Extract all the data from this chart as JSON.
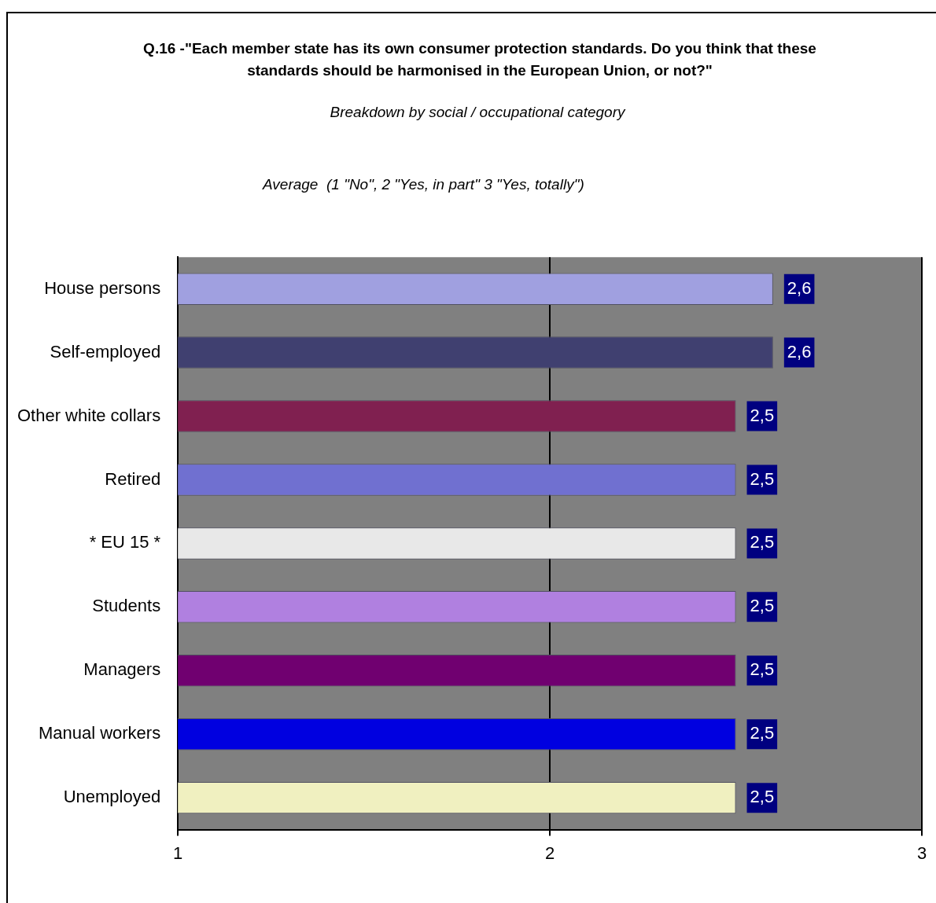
{
  "chart_data": {
    "type": "bar",
    "orientation": "horizontal",
    "title": "Q.16 -\"Each  member state has its own consumer protection standards. Do you think that these standards should be harmonised in the European Union, or not?\"",
    "subtitle": "Breakdown by social / occupational category",
    "annotations": [
      "Average  (1 \"No\", 2 \"Yes, in part\" 3 \"Yes, totally\")"
    ],
    "categories": [
      "House persons",
      "Self-employed",
      "Other white collars",
      "Retired",
      "* EU 15 *",
      "Students",
      "Managers",
      "Manual workers",
      "Unemployed"
    ],
    "values": [
      2.6,
      2.6,
      2.5,
      2.5,
      2.5,
      2.5,
      2.5,
      2.5,
      2.5
    ],
    "value_labels": [
      "2,6",
      "2,6",
      "2,5",
      "2,5",
      "2,5",
      "2,5",
      "2,5",
      "2,5",
      "2,5"
    ],
    "colors": [
      "#a0a0e0",
      "#404070",
      "#802050",
      "#7070d0",
      "#e8e8e8",
      "#b080e0",
      "#700070",
      "#0000e0",
      "#f0f0c0"
    ],
    "xlim": [
      1,
      3
    ],
    "xticks": [
      1,
      2,
      3
    ],
    "grid": "x"
  }
}
